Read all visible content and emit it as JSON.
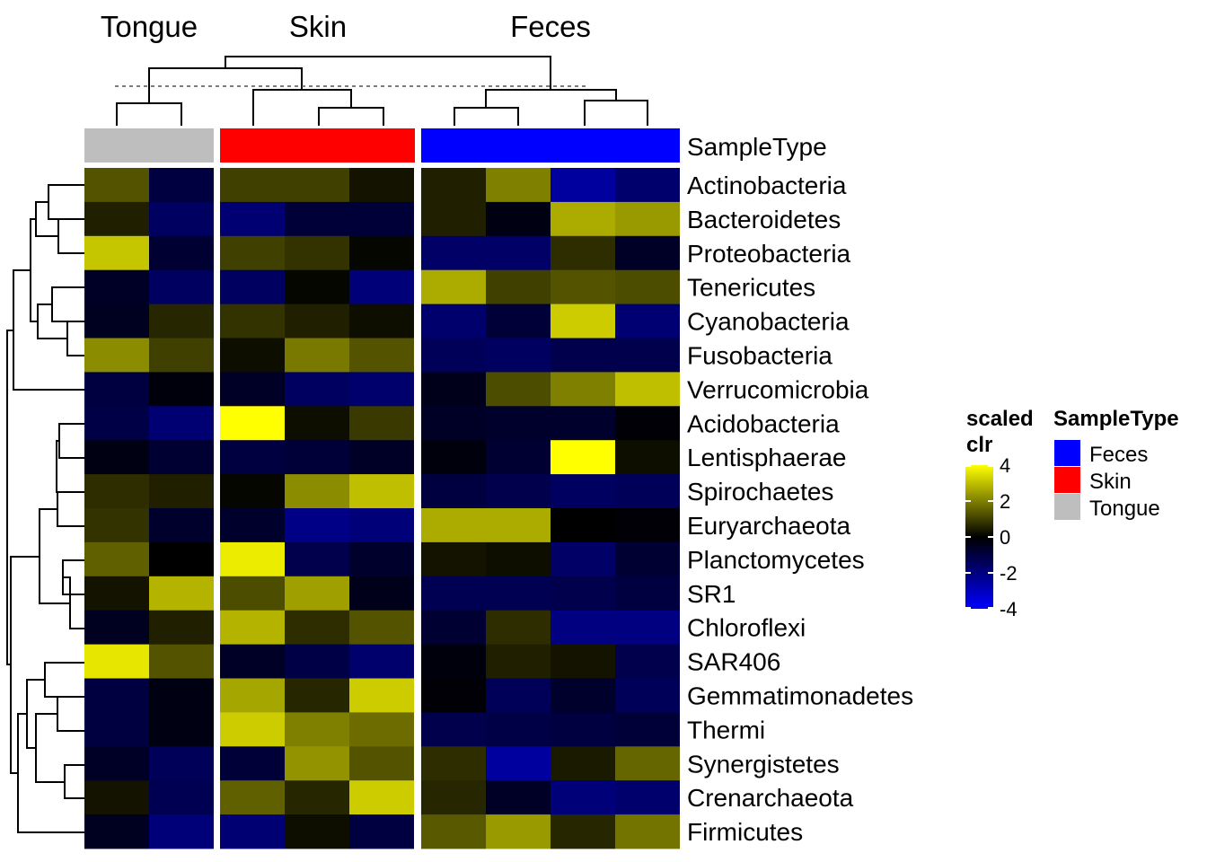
{
  "chart_data": {
    "type": "heatmap",
    "groups": [
      {
        "name": "Tongue",
        "samples": 2
      },
      {
        "name": "Skin",
        "samples": 3
      },
      {
        "name": "Feces",
        "samples": 4
      }
    ],
    "rows": [
      "Actinobacteria",
      "Bacteroidetes",
      "Proteobacteria",
      "Tenericutes",
      "Cyanobacteria",
      "Fusobacteria",
      "Verrucomicrobia",
      "Acidobacteria",
      "Lentisphaerae",
      "Spirochaetes",
      "Euryarchaeota",
      "Planctomycetes",
      "SR1",
      "Chloroflexi",
      "SAR406",
      "Gemmatimonadetes",
      "Thermi",
      "Synergistetes",
      "Crenarchaeota",
      "Firmicutes"
    ],
    "values": [
      [
        1.3,
        -1.0,
        1.0,
        1.0,
        0.3,
        0.5,
        2.0,
        -2.5,
        -1.7
      ],
      [
        0.5,
        -1.5,
        -1.8,
        -0.9,
        -0.9,
        0.5,
        -0.3,
        2.7,
        2.4
      ],
      [
        3.1,
        -0.8,
        1.0,
        0.8,
        0.1,
        -1.6,
        -1.6,
        0.7,
        -0.6
      ],
      [
        -0.6,
        -1.5,
        -1.5,
        0.1,
        -1.9,
        2.7,
        1.0,
        1.3,
        1.2
      ],
      [
        -0.5,
        0.6,
        0.8,
        0.5,
        0.2,
        -1.7,
        -0.9,
        3.2,
        -1.8
      ],
      [
        2.2,
        1.0,
        0.2,
        1.9,
        1.3,
        -1.4,
        -1.5,
        -1.2,
        -1.2
      ],
      [
        -1.0,
        -0.2,
        -0.6,
        -1.5,
        -1.7,
        -0.4,
        1.2,
        2.0,
        3.0
      ],
      [
        -1.1,
        -1.8,
        4.0,
        0.2,
        0.9,
        -0.6,
        -0.7,
        -0.7,
        -0.1
      ],
      [
        -0.3,
        -0.8,
        -1.0,
        -0.9,
        -0.6,
        -0.2,
        -0.8,
        4.5,
        0.2
      ],
      [
        0.7,
        0.5,
        0.1,
        2.2,
        3.0,
        -1.0,
        -1.2,
        -1.5,
        -1.4
      ],
      [
        0.8,
        -0.7,
        -0.7,
        -2.1,
        -1.9,
        2.7,
        2.7,
        0.0,
        -0.1
      ],
      [
        1.5,
        0.0,
        3.7,
        -1.2,
        -0.7,
        0.3,
        0.2,
        -1.6,
        -0.8
      ],
      [
        0.3,
        2.8,
        1.2,
        2.5,
        -0.4,
        -1.3,
        -1.3,
        -1.2,
        -1.0
      ],
      [
        -0.5,
        0.5,
        2.8,
        0.7,
        1.3,
        -0.8,
        0.7,
        -2.0,
        -2.0
      ],
      [
        3.6,
        1.3,
        -0.6,
        -1.1,
        -1.7,
        -0.2,
        0.5,
        0.3,
        -1.2
      ],
      [
        -1.0,
        -0.3,
        2.6,
        0.6,
        3.2,
        -0.1,
        -1.4,
        -0.7,
        -1.4
      ],
      [
        -1.0,
        -0.3,
        3.2,
        2.0,
        1.7,
        -1.2,
        -1.1,
        -1.0,
        -0.9
      ],
      [
        -0.6,
        -1.4,
        -0.9,
        2.3,
        1.3,
        0.7,
        -2.5,
        0.4,
        1.6
      ],
      [
        0.3,
        -1.3,
        1.5,
        0.6,
        3.2,
        0.6,
        -0.6,
        -1.9,
        -1.7
      ],
      [
        -0.5,
        -1.9,
        -1.8,
        0.2,
        -1.0,
        1.4,
        2.4,
        0.6,
        1.8
      ]
    ],
    "annotation": {
      "name": "SampleType",
      "colors": {
        "Tongue": "#bebebe",
        "Skin": "#ff0000",
        "Feces": "#0000ff"
      }
    },
    "color_scale": {
      "title": "scaled\nclr",
      "stops": [
        {
          "value": -4,
          "color": "#0000ff"
        },
        {
          "value": 0,
          "color": "#000000"
        },
        {
          "value": 4,
          "color": "#ffff00"
        }
      ],
      "ticks": [
        "4",
        "2",
        "0",
        "-2",
        "-4"
      ],
      "tick_values": [
        4,
        2,
        0,
        -2,
        -4
      ]
    },
    "legend": {
      "title": "SampleType",
      "items": [
        {
          "label": "Feces",
          "color": "#0000ff"
        },
        {
          "label": "Skin",
          "color": "#ff0000"
        },
        {
          "label": "Tongue",
          "color": "#bebebe"
        }
      ]
    },
    "column_dendrogram_cut": "dashed line"
  }
}
